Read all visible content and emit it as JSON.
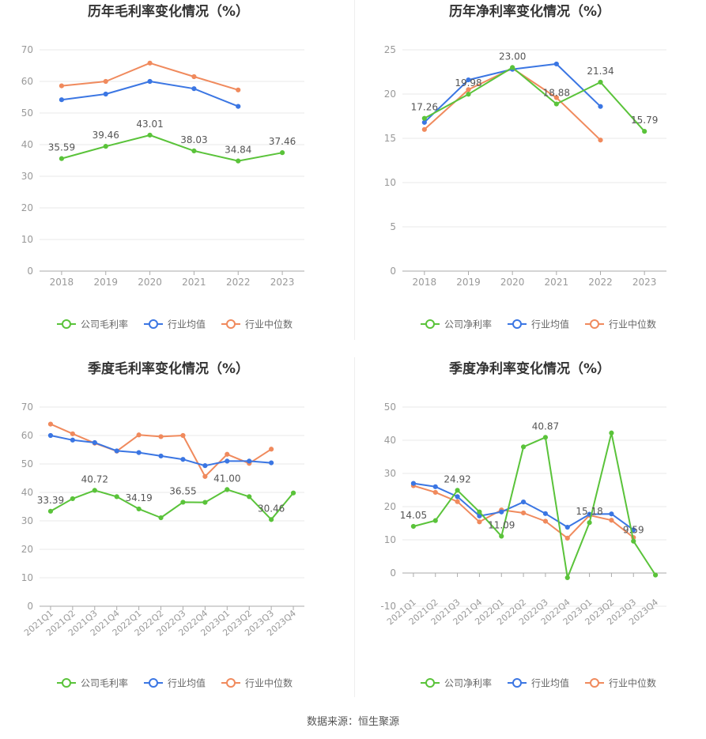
{
  "source": "数据来源：恒生聚源",
  "colors": {
    "company": "#5ac33a",
    "industry_avg": "#3b76e3",
    "industry_median": "#f08a5d",
    "grid": "#e8e8e8",
    "axis": "#999999",
    "title": "#333333",
    "label": "#555555"
  },
  "chart_data": [
    {
      "type": "line",
      "title": "历年毛利率变化情况（%）",
      "categories": [
        "2018",
        "2019",
        "2020",
        "2021",
        "2022",
        "2023"
      ],
      "ylim": [
        0,
        70
      ],
      "yticks": [
        0,
        10,
        20,
        30,
        40,
        50,
        60,
        70
      ],
      "grid": true,
      "legend_position": "bottom",
      "series": [
        {
          "name": "公司毛利率",
          "color": "#5ac33a",
          "labeled": true,
          "values": [
            35.59,
            39.46,
            43.01,
            38.03,
            34.84,
            37.46
          ]
        },
        {
          "name": "行业均值",
          "color": "#3b76e3",
          "labeled": false,
          "values": [
            54.2,
            56.0,
            60.0,
            57.7,
            52.1,
            null
          ]
        },
        {
          "name": "行业中位数",
          "color": "#f08a5d",
          "labeled": false,
          "values": [
            58.6,
            60.0,
            65.8,
            61.5,
            57.3,
            null
          ]
        }
      ],
      "data_labels": [
        {
          "i": 0,
          "text": "35.59"
        },
        {
          "i": 1,
          "text": "39.46"
        },
        {
          "i": 2,
          "text": "43.01"
        },
        {
          "i": 3,
          "text": "38.03"
        },
        {
          "i": 4,
          "text": "34.84"
        },
        {
          "i": 5,
          "text": "37.46"
        }
      ]
    },
    {
      "type": "line",
      "title": "历年净利率变化情况（%）",
      "categories": [
        "2018",
        "2019",
        "2020",
        "2021",
        "2022",
        "2023"
      ],
      "ylim": [
        0,
        25
      ],
      "yticks": [
        0,
        5,
        10,
        15,
        20,
        25
      ],
      "grid": true,
      "legend_position": "bottom",
      "series": [
        {
          "name": "公司净利率",
          "color": "#5ac33a",
          "labeled": true,
          "values": [
            17.26,
            19.98,
            23.0,
            18.88,
            21.34,
            15.79
          ]
        },
        {
          "name": "行业均值",
          "color": "#3b76e3",
          "labeled": false,
          "values": [
            16.8,
            21.6,
            22.8,
            23.4,
            18.6,
            null
          ]
        },
        {
          "name": "行业中位数",
          "color": "#f08a5d",
          "labeled": false,
          "values": [
            16.0,
            20.5,
            22.9,
            19.6,
            14.8,
            null
          ]
        }
      ],
      "data_labels": [
        {
          "i": 0,
          "text": "17.26"
        },
        {
          "i": 1,
          "text": "19.98"
        },
        {
          "i": 2,
          "text": "23.00"
        },
        {
          "i": 3,
          "text": "18.88"
        },
        {
          "i": 4,
          "text": "21.34"
        },
        {
          "i": 5,
          "text": "15.79"
        }
      ]
    },
    {
      "type": "line",
      "title": "季度毛利率变化情况（%）",
      "categories": [
        "2021Q1",
        "2021Q2",
        "2021Q3",
        "2021Q4",
        "2022Q1",
        "2022Q2",
        "2022Q3",
        "2022Q4",
        "2023Q1",
        "2023Q2",
        "2023Q3",
        "2023Q4"
      ],
      "ylim": [
        0,
        70
      ],
      "yticks": [
        0,
        10,
        20,
        30,
        40,
        50,
        60,
        70
      ],
      "grid": true,
      "legend_position": "bottom",
      "series": [
        {
          "name": "公司毛利率",
          "color": "#5ac33a",
          "labeled": true,
          "values": [
            33.39,
            37.8,
            40.72,
            38.5,
            34.19,
            31.1,
            36.55,
            36.5,
            41.0,
            38.5,
            30.46,
            39.8
          ]
        },
        {
          "name": "行业均值",
          "color": "#3b76e3",
          "labeled": false,
          "values": [
            60.0,
            58.4,
            57.5,
            54.6,
            54.0,
            52.8,
            51.6,
            49.4,
            51.0,
            51.0,
            50.4,
            null
          ]
        },
        {
          "name": "行业中位数",
          "color": "#f08a5d",
          "labeled": false,
          "values": [
            64.0,
            60.6,
            57.3,
            54.5,
            60.2,
            59.6,
            60.0,
            45.6,
            53.4,
            50.2,
            55.2,
            null
          ]
        }
      ],
      "data_labels": [
        {
          "i": 0,
          "text": "33.39"
        },
        {
          "i": 2,
          "text": "40.72"
        },
        {
          "i": 4,
          "text": "34.19"
        },
        {
          "i": 6,
          "text": "36.55"
        },
        {
          "i": 8,
          "text": "41.00"
        },
        {
          "i": 10,
          "text": "30.46"
        }
      ]
    },
    {
      "type": "line",
      "title": "季度净利率变化情况（%）",
      "categories": [
        "2021Q1",
        "2021Q2",
        "2021Q3",
        "2021Q4",
        "2022Q1",
        "2022Q2",
        "2022Q3",
        "2022Q4",
        "2023Q1",
        "2023Q2",
        "2023Q3",
        "2023Q4"
      ],
      "ylim": [
        -10,
        50
      ],
      "yticks": [
        -10,
        0,
        10,
        20,
        30,
        40,
        50
      ],
      "grid": true,
      "legend_position": "bottom",
      "series": [
        {
          "name": "公司净利率",
          "color": "#5ac33a",
          "labeled": true,
          "values": [
            14.05,
            15.8,
            24.92,
            18.4,
            11.09,
            38.0,
            40.87,
            -1.4,
            15.18,
            42.2,
            9.59,
            -0.6
          ]
        },
        {
          "name": "行业均值",
          "color": "#3b76e3",
          "labeled": false,
          "values": [
            27.0,
            26.0,
            23.0,
            17.2,
            18.4,
            21.4,
            17.9,
            13.8,
            17.7,
            17.8,
            13.0,
            null
          ]
        },
        {
          "name": "行业中位数",
          "color": "#f08a5d",
          "labeled": false,
          "values": [
            26.3,
            24.3,
            21.5,
            15.4,
            19.0,
            18.1,
            15.6,
            10.5,
            17.4,
            15.9,
            10.7,
            null
          ]
        }
      ],
      "data_labels": [
        {
          "i": 0,
          "text": "14.05"
        },
        {
          "i": 2,
          "text": "24.92"
        },
        {
          "i": 4,
          "text": "11.09"
        },
        {
          "i": 6,
          "text": "40.87"
        },
        {
          "i": 8,
          "text": "15.18"
        },
        {
          "i": 10,
          "text": "9.59"
        }
      ]
    }
  ]
}
